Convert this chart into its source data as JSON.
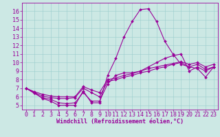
{
  "xlabel": "Windchill (Refroidissement éolien,°C)",
  "bg_color": "#cce8e4",
  "line_color": "#990099",
  "grid_color": "#99cccc",
  "x_hours": [
    0,
    1,
    2,
    3,
    4,
    5,
    6,
    7,
    8,
    9,
    10,
    11,
    12,
    13,
    14,
    15,
    16,
    17,
    18,
    19,
    20,
    21,
    22,
    23
  ],
  "lines": [
    [
      7.0,
      6.5,
      5.8,
      5.5,
      5.0,
      5.0,
      5.0,
      6.7,
      5.3,
      5.3,
      8.5,
      10.5,
      13.0,
      14.8,
      16.2,
      16.3,
      14.8,
      12.5,
      11.0,
      9.8,
      9.5,
      9.3,
      8.3,
      9.5
    ],
    [
      7.0,
      6.4,
      5.9,
      5.7,
      5.3,
      5.2,
      5.3,
      6.5,
      5.5,
      5.5,
      7.5,
      8.5,
      8.8,
      8.8,
      9.0,
      9.5,
      10.0,
      10.5,
      10.8,
      11.0,
      9.0,
      9.5,
      9.0,
      9.5
    ],
    [
      7.0,
      6.5,
      6.1,
      5.9,
      5.8,
      5.8,
      5.9,
      7.0,
      6.5,
      6.0,
      7.8,
      8.0,
      8.3,
      8.5,
      8.8,
      9.0,
      9.3,
      9.5,
      9.8,
      10.0,
      9.5,
      9.8,
      9.2,
      9.5
    ],
    [
      7.0,
      6.6,
      6.3,
      6.1,
      6.0,
      6.0,
      6.0,
      7.2,
      6.8,
      6.5,
      8.0,
      8.2,
      8.5,
      8.7,
      9.0,
      9.3,
      9.5,
      9.7,
      9.9,
      10.1,
      9.8,
      10.0,
      9.5,
      9.8
    ]
  ],
  "xlim": [
    -0.5,
    23.5
  ],
  "ylim": [
    4.5,
    17.0
  ],
  "yticks": [
    5,
    6,
    7,
    8,
    9,
    10,
    11,
    12,
    13,
    14,
    15,
    16
  ],
  "xticks": [
    0,
    1,
    2,
    3,
    4,
    5,
    6,
    7,
    8,
    9,
    10,
    11,
    12,
    13,
    14,
    15,
    16,
    17,
    18,
    19,
    20,
    21,
    22,
    23
  ],
  "xlabel_fontsize": 6,
  "tick_fontsize": 6
}
